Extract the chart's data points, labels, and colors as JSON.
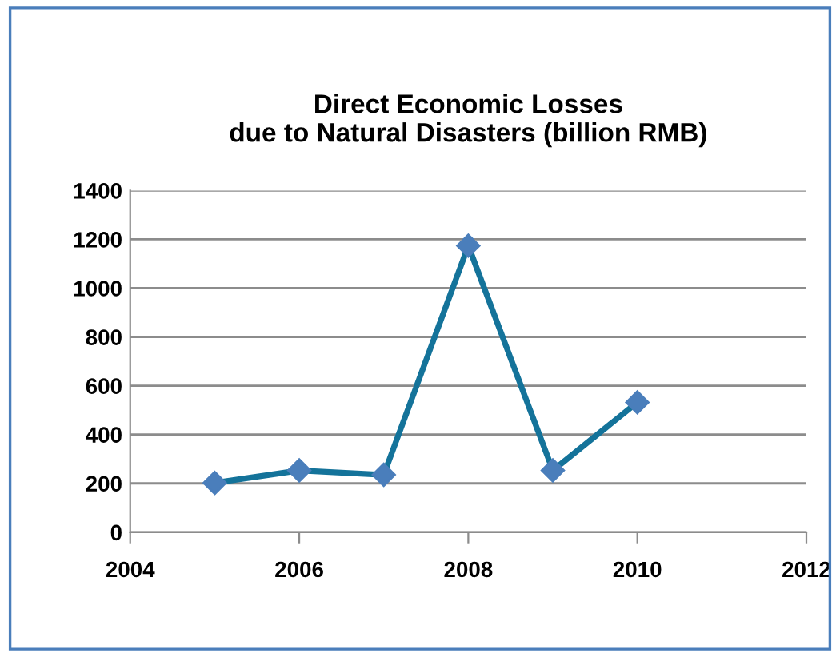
{
  "chart_data": {
    "type": "line",
    "title": "Direct Economic Losses\ndue to Natural Disasters (billion RMB)",
    "x": [
      2005,
      2006,
      2007,
      2008,
      2009,
      2010
    ],
    "series": [
      {
        "color": "#14739a",
        "values": [
          202,
          253,
          235,
          1174,
          253,
          532
        ]
      }
    ],
    "xlim": [
      2004,
      2012
    ],
    "xticks": [
      2004,
      2006,
      2008,
      2010,
      2012
    ],
    "ylim": [
      0,
      1400
    ],
    "yticks": [
      0,
      200,
      400,
      600,
      800,
      1000,
      1200,
      1400
    ],
    "grid": "y",
    "marker": "diamond",
    "legend": false
  }
}
